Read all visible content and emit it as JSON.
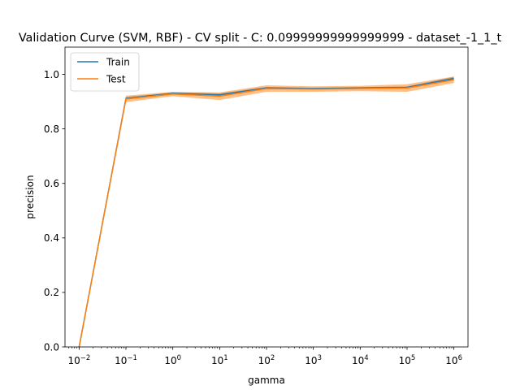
{
  "chart_data": {
    "type": "line",
    "title": "Validation Curve (SVM, RBF) - CV split - C: 0.09999999999999999 - dataset_-1_1_t",
    "xlabel": "gamma",
    "ylabel": "precision",
    "xscale": "log",
    "xlim": [
      0.005,
      2000000
    ],
    "ylim": [
      0.0,
      1.1
    ],
    "x": [
      0.01,
      0.1,
      1,
      10,
      100,
      1000,
      10000,
      100000,
      1000000
    ],
    "x_tick_labels": [
      {
        "base": "10",
        "exp": "−2"
      },
      {
        "base": "10",
        "exp": "−1"
      },
      {
        "base": "10",
        "exp": "0"
      },
      {
        "base": "10",
        "exp": "1"
      },
      {
        "base": "10",
        "exp": "2"
      },
      {
        "base": "10",
        "exp": "3"
      },
      {
        "base": "10",
        "exp": "4"
      },
      {
        "base": "10",
        "exp": "5"
      },
      {
        "base": "10",
        "exp": "6"
      }
    ],
    "y_ticks": [
      "0.0",
      "0.2",
      "0.4",
      "0.6",
      "0.8",
      "1.0"
    ],
    "series": [
      {
        "name": "Train",
        "color": "#1f77b4",
        "values": [
          0.0,
          0.912,
          0.93,
          0.925,
          0.95,
          0.948,
          0.95,
          0.952,
          0.985
        ],
        "band": [
          0.0,
          0.005,
          0.004,
          0.005,
          0.004,
          0.003,
          0.003,
          0.004,
          0.006
        ]
      },
      {
        "name": "Test",
        "color": "#ff7f0e",
        "values": [
          0.0,
          0.91,
          0.928,
          0.92,
          0.948,
          0.946,
          0.948,
          0.95,
          0.98
        ],
        "band": [
          0.0,
          0.012,
          0.008,
          0.014,
          0.012,
          0.01,
          0.01,
          0.014,
          0.012
        ]
      }
    ],
    "legend": {
      "position": "upper-left",
      "entries": [
        "Train",
        "Test"
      ]
    }
  }
}
